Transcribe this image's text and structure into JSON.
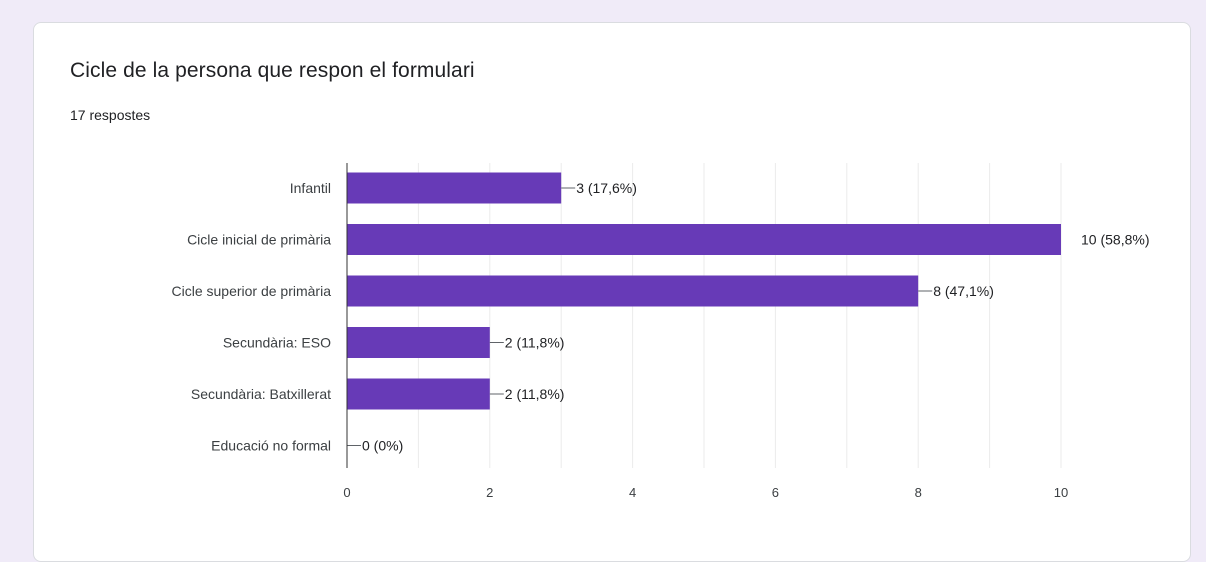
{
  "card": {
    "title": "Cicle de la persona que respon el formulari",
    "subtitle": "17 respostes"
  },
  "colors": {
    "bar": "#673ab7",
    "grid": "#ebebeb",
    "axis": "#333333",
    "page_background": "#f0ebf8"
  },
  "chart_data": {
    "type": "bar",
    "orientation": "horizontal",
    "title": "Cicle de la persona que respon el formulari",
    "categories": [
      "Infantil",
      "Cicle inicial de primària",
      "Cicle superior de primària",
      "Secundària: ESO",
      "Secundària: Batxillerat",
      "Educació no formal"
    ],
    "values": [
      3,
      10,
      8,
      2,
      2,
      0
    ],
    "data_labels": [
      "3 (17,6%)",
      "10 (58,8%)",
      "8 (47,1%)",
      "2 (11,8%)",
      "2 (11,8%)",
      "0 (0%)"
    ],
    "xlim": [
      0,
      10
    ],
    "x_ticks": [
      0,
      2,
      4,
      6,
      8,
      10
    ],
    "grid": true,
    "legend": "none"
  }
}
